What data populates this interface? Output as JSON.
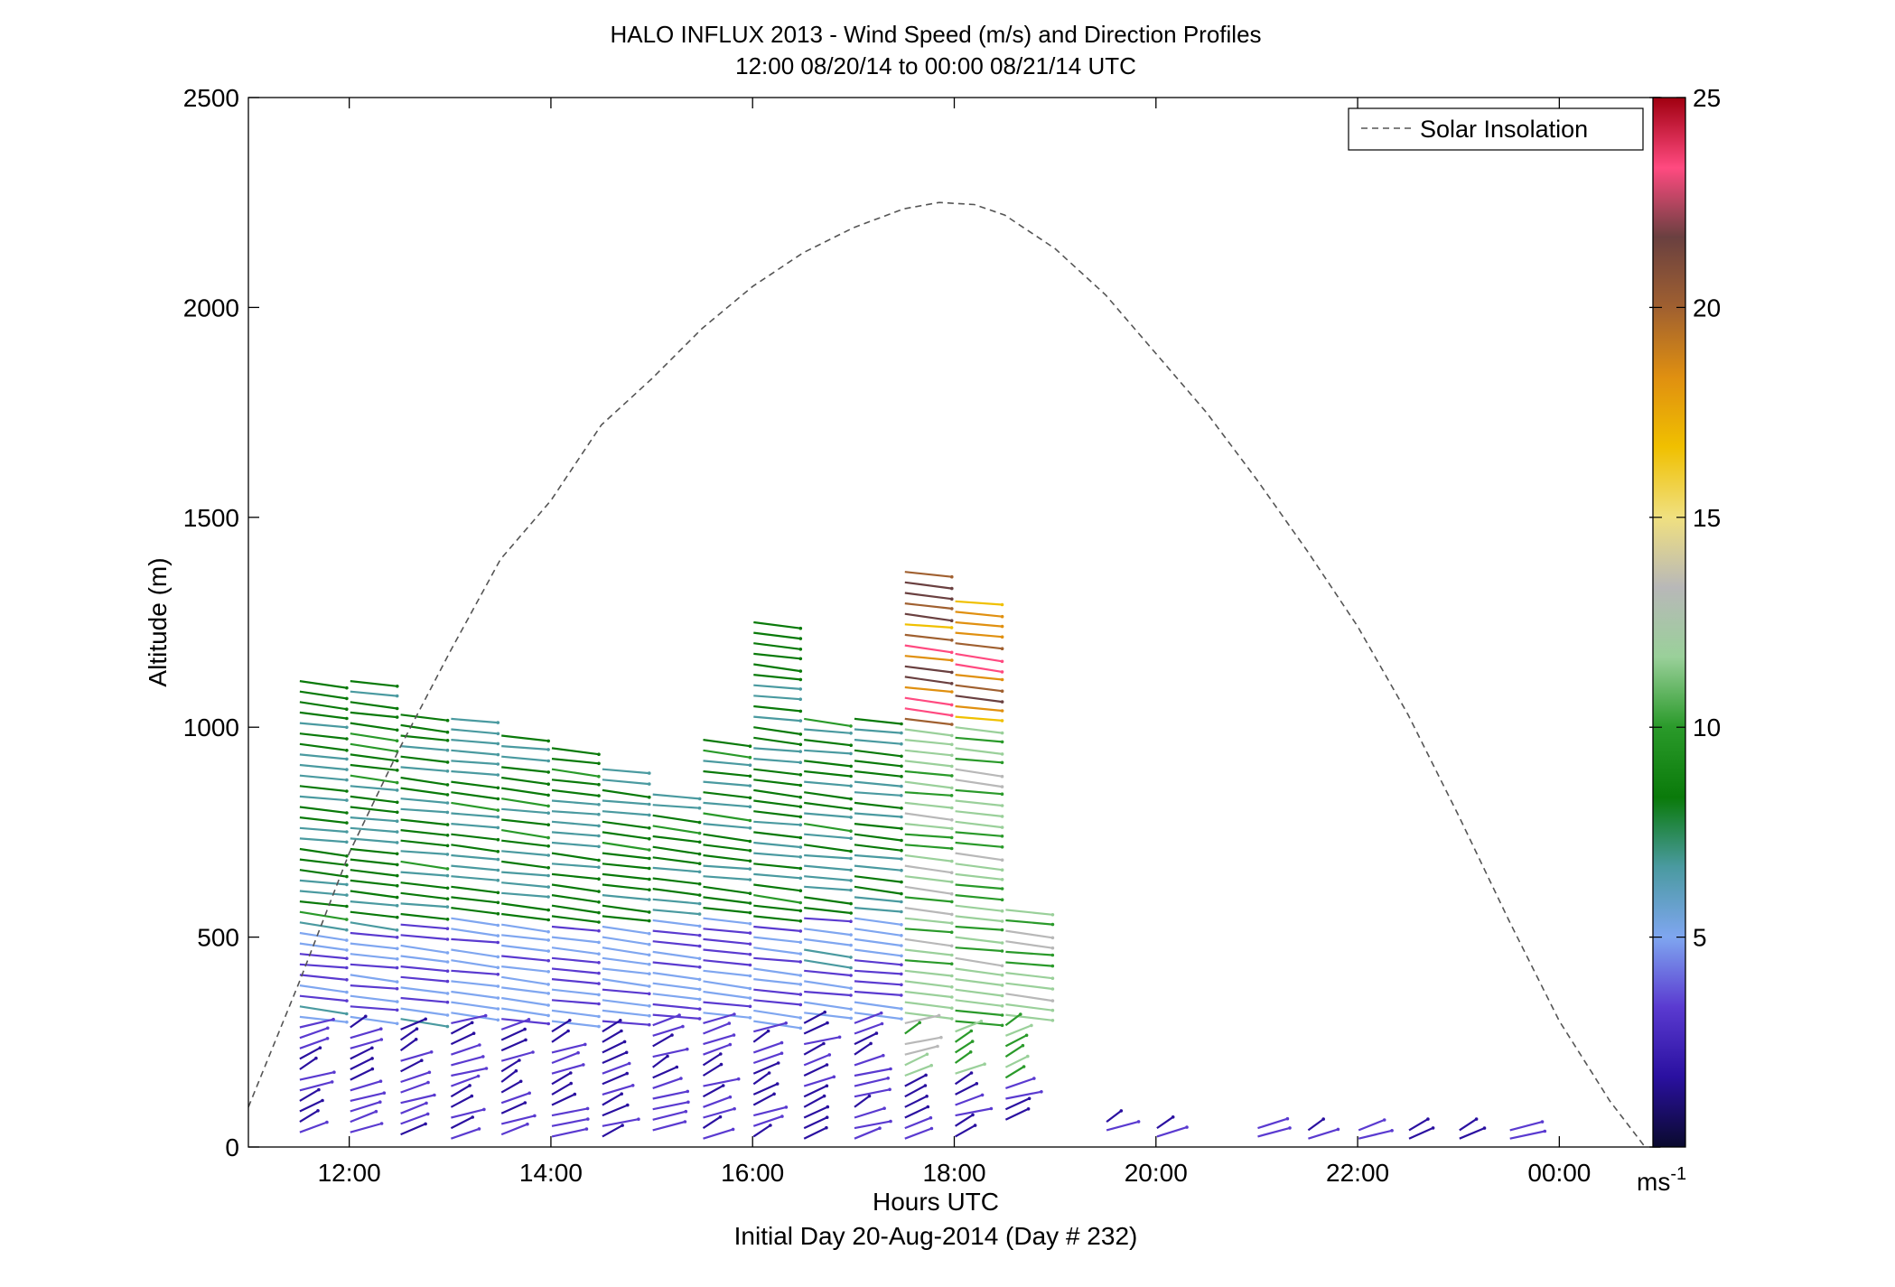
{
  "chart_data": {
    "type": "scatter",
    "title": "HALO INFLUX 2013 - Wind Speed (m/s) and Direction Profiles",
    "subtitle": "12:00 08/20/14 to 00:00 08/21/14  UTC",
    "xlabel": "Hours UTC",
    "xlabel2": "Initial Day 20-Aug-2014 (Day # 232)",
    "ylabel": "Altitude (m)",
    "xlim": [
      11,
      25
    ],
    "ylim": [
      0,
      2500
    ],
    "x_ticks": [
      {
        "value": 12,
        "label": "12:00"
      },
      {
        "value": 14,
        "label": "14:00"
      },
      {
        "value": 16,
        "label": "16:00"
      },
      {
        "value": 18,
        "label": "18:00"
      },
      {
        "value": 20,
        "label": "20:00"
      },
      {
        "value": 22,
        "label": "22:00"
      },
      {
        "value": 24,
        "label": "00:00"
      }
    ],
    "y_ticks": [
      {
        "value": 0,
        "label": "0"
      },
      {
        "value": 500,
        "label": "500"
      },
      {
        "value": 1000,
        "label": "1000"
      },
      {
        "value": 1500,
        "label": "1500"
      },
      {
        "value": 2000,
        "label": "2000"
      },
      {
        "value": 2500,
        "label": "2500"
      }
    ],
    "legend": {
      "placement": "top-right",
      "entries": [
        "Solar Insolation"
      ]
    },
    "colorbar": {
      "min": 0,
      "max": 25,
      "ticks": [
        "5",
        "10",
        "15",
        "20",
        "25"
      ],
      "tick_values": [
        5,
        10,
        15,
        20,
        25
      ],
      "unit_base": "ms",
      "unit_exp": "-1",
      "colors": [
        "#0a0a2e",
        "#2a10a0",
        "#5a3ad0",
        "#7fa6f0",
        "#4a9aa0",
        "#0a7a0a",
        "#2a9a2a",
        "#9ad09a",
        "#b8b8b8",
        "#f0e080",
        "#f0c000",
        "#e09010",
        "#a06030",
        "#6a4040",
        "#ff4a80",
        "#a00010"
      ]
    },
    "solar_insolation": {
      "style": "dashed",
      "color": "#555555",
      "x": [
        11.0,
        11.5,
        12.0,
        12.5,
        13.0,
        13.5,
        14.0,
        14.5,
        15.0,
        15.5,
        16.0,
        16.5,
        17.0,
        17.5,
        17.85,
        18.2,
        18.5,
        19.0,
        19.5,
        20.0,
        20.5,
        21.0,
        21.5,
        22.0,
        22.5,
        23.0,
        23.5,
        24.0,
        24.5,
        24.85
      ],
      "y": [
        95,
        390,
        700,
        950,
        1180,
        1400,
        1540,
        1720,
        1830,
        1950,
        2050,
        2130,
        2190,
        2235,
        2250,
        2245,
        2220,
        2140,
        2030,
        1890,
        1750,
        1590,
        1420,
        1240,
        1030,
        790,
        540,
        300,
        110,
        0
      ]
    },
    "wind_profiles": [
      {
        "x": 11.75,
        "top": 1110,
        "bottom": 15
      },
      {
        "x": 12.25,
        "top": 1110,
        "bottom": 20
      },
      {
        "x": 12.75,
        "top": 1030,
        "bottom": 20
      },
      {
        "x": 13.25,
        "top": 1020,
        "bottom": 20
      },
      {
        "x": 13.75,
        "top": 980,
        "bottom": 25
      },
      {
        "x": 14.25,
        "top": 950,
        "bottom": 25
      },
      {
        "x": 14.75,
        "top": 900,
        "bottom": 25
      },
      {
        "x": 15.25,
        "top": 840,
        "bottom": 20
      },
      {
        "x": 15.75,
        "top": 970,
        "bottom": 20
      },
      {
        "x": 16.25,
        "top": 1250,
        "bottom": 20
      },
      {
        "x": 16.75,
        "top": 1020,
        "bottom": 20
      },
      {
        "x": 17.25,
        "top": 1020,
        "bottom": 20
      },
      {
        "x": 17.75,
        "top": 1370,
        "bottom": 20
      },
      {
        "x": 18.25,
        "top": 1300,
        "bottom": 20
      },
      {
        "x": 18.75,
        "top": 565,
        "bottom": 60
      },
      {
        "x": 19.75,
        "top": 60,
        "bottom": 25
      },
      {
        "x": 20.25,
        "top": 45,
        "bottom": 20
      },
      {
        "x": 21.25,
        "top": 45,
        "bottom": 20
      },
      {
        "x": 21.75,
        "top": 40,
        "bottom": 20
      },
      {
        "x": 22.25,
        "top": 40,
        "bottom": 20
      },
      {
        "x": 22.75,
        "top": 40,
        "bottom": 20
      },
      {
        "x": 23.25,
        "top": 40,
        "bottom": 20
      },
      {
        "x": 23.75,
        "top": 40,
        "bottom": 20
      }
    ]
  }
}
